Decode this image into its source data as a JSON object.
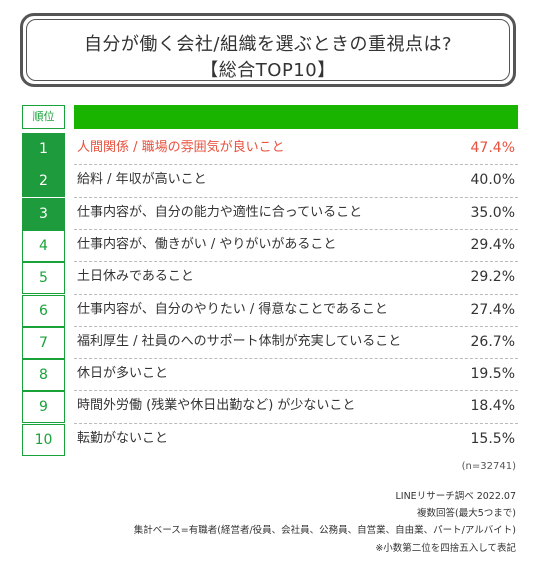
{
  "header": {
    "title_line1": "自分が働く会社/組織を選ぶときの重視点は?",
    "title_line2": "【総合TOP10】",
    "rank_label": "順位"
  },
  "chart_data": {
    "type": "table",
    "title": "自分が働く会社/組織を選ぶときの重視点は? 【総合TOP10】",
    "rows": [
      {
        "rank": "1",
        "item": "人間関係 / 職場の雰囲気が良いこと",
        "value": "47.4%"
      },
      {
        "rank": "2",
        "item": "給料 / 年収が高いこと",
        "value": "40.0%"
      },
      {
        "rank": "3",
        "item": "仕事内容が、自分の能力や適性に合っていること",
        "value": "35.0%"
      },
      {
        "rank": "4",
        "item": "仕事内容が、働きがい / やりがいがあること",
        "value": "29.4%"
      },
      {
        "rank": "5",
        "item": "土日休みであること",
        "value": "29.2%"
      },
      {
        "rank": "6",
        "item": "仕事内容が、自分のやりたい / 得意なことであること",
        "value": "27.4%"
      },
      {
        "rank": "7",
        "item": "福利厚生 / 社員のへのサポート体制が充実していること",
        "value": "26.7%"
      },
      {
        "rank": "8",
        "item": "休日が多いこと",
        "value": "19.5%"
      },
      {
        "rank": "9",
        "item": "時間外労働 (残業や休日出勤など) が少ないこと",
        "value": "18.4%"
      },
      {
        "rank": "10",
        "item": "転勤がないこと",
        "value": "15.5%"
      }
    ],
    "colors": {
      "top3_rank": "#1e9b3c",
      "header_bar": "#19b400",
      "highlight_text": "#e8513d"
    }
  },
  "footer": {
    "sample_size": "(n=32741)",
    "source": "LINEリサーチ調べ 2022.07",
    "answer_type": "複数回答(最大5つまで)",
    "base": "集計ベース=有職者(経営者/役員、会社員、公務員、自営業、自由業、パート/アルバイト)",
    "rounding": "※小数第二位を四捨五入して表記"
  }
}
